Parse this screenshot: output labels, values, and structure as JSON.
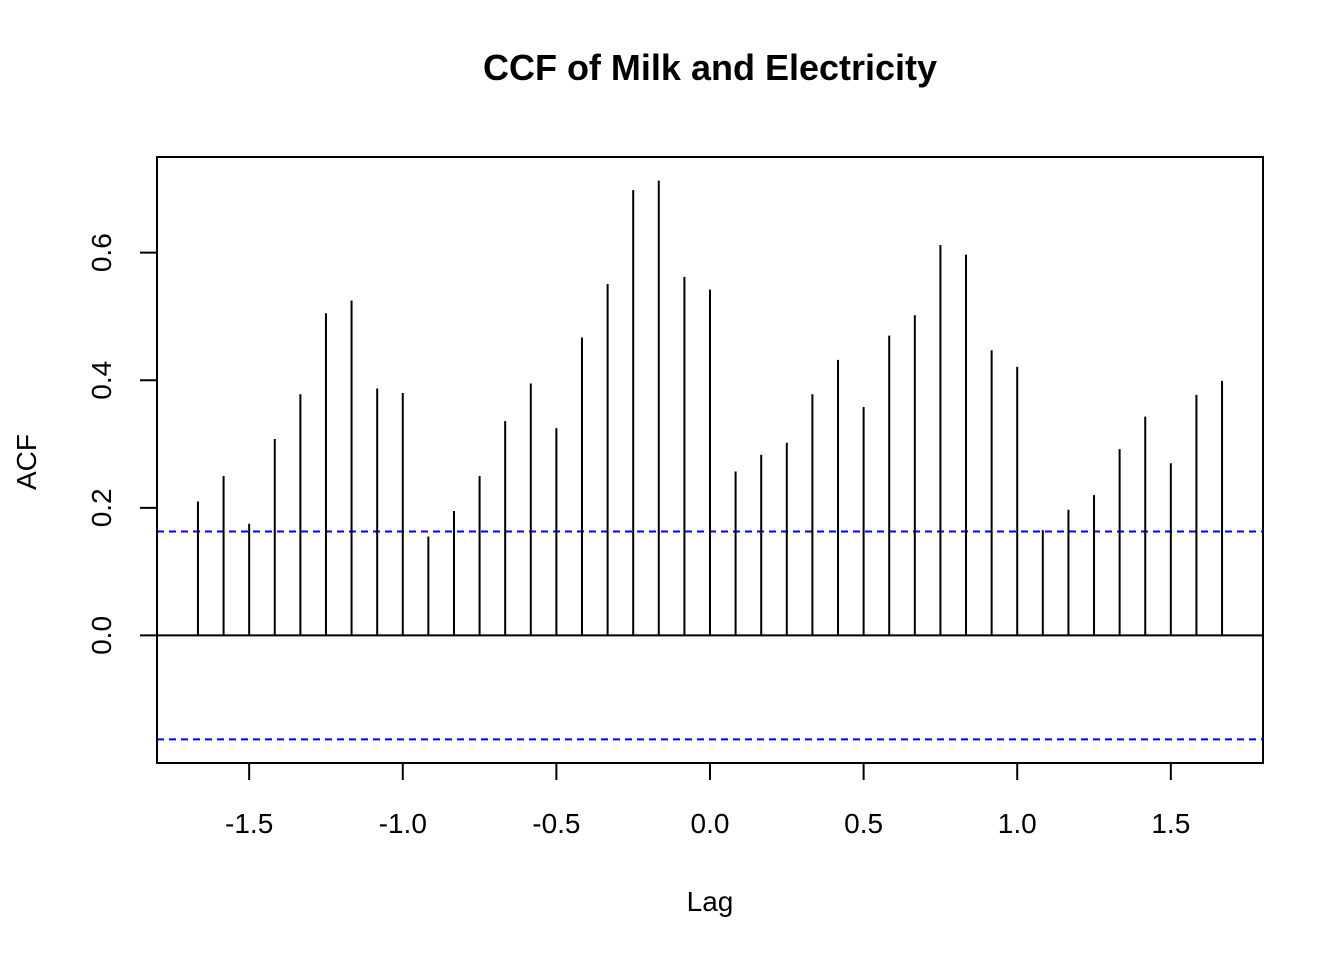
{
  "chart_data": {
    "type": "bar",
    "subtype": "correlogram",
    "title": "CCF of Milk and Electricity",
    "xlabel": "Lag",
    "ylabel": "ACF",
    "xlim": [
      -1.8,
      1.8
    ],
    "ylim": [
      -0.2,
      0.75
    ],
    "x_ticks": [
      -1.5,
      -1.0,
      -0.5,
      0.0,
      0.5,
      1.0,
      1.5
    ],
    "x_tick_labels": [
      "-1.5",
      "-1.0",
      "-0.5",
      "0.0",
      "0.5",
      "1.0",
      "1.5"
    ],
    "y_ticks": [
      0.0,
      0.2,
      0.4,
      0.6
    ],
    "y_tick_labels": [
      "0.0",
      "0.2",
      "0.4",
      "0.6"
    ],
    "confidence_bound": 0.163,
    "confidence_color": "#0000ff",
    "bar_color": "#000000",
    "grid": false,
    "lags": [
      -1.6667,
      -1.5833,
      -1.5,
      -1.4167,
      -1.3333,
      -1.25,
      -1.1667,
      -1.0833,
      -1.0,
      -0.9167,
      -0.8333,
      -0.75,
      -0.6667,
      -0.5833,
      -0.5,
      -0.4167,
      -0.3333,
      -0.25,
      -0.1667,
      -0.0833,
      0.0,
      0.0833,
      0.1667,
      0.25,
      0.3333,
      0.4167,
      0.5,
      0.5833,
      0.6667,
      0.75,
      0.8333,
      0.9167,
      1.0,
      1.0833,
      1.1667,
      1.25,
      1.3333,
      1.4167,
      1.5,
      1.5833,
      1.6667
    ],
    "values": [
      0.21,
      0.25,
      0.175,
      0.308,
      0.378,
      0.505,
      0.525,
      0.387,
      0.38,
      0.155,
      0.195,
      0.25,
      0.336,
      0.395,
      0.325,
      0.467,
      0.551,
      0.698,
      0.713,
      0.562,
      0.542,
      0.257,
      0.283,
      0.302,
      0.378,
      0.432,
      0.358,
      0.47,
      0.502,
      0.612,
      0.597,
      0.447,
      0.421,
      0.165,
      0.197,
      0.22,
      0.292,
      0.343,
      0.27,
      0.377,
      0.399
    ]
  }
}
